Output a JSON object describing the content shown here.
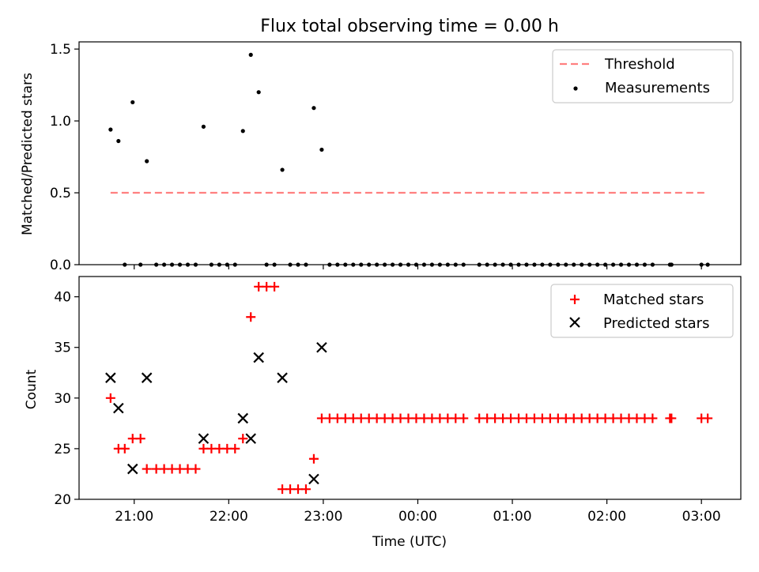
{
  "chart_data": [
    {
      "type": "scatter",
      "title": "Flux total observing time = 0.00 h",
      "xlabel": "",
      "ylabel": "Matched/Predicted stars",
      "xlim_minutes": [
        1225,
        1645
      ],
      "ylim": [
        0,
        1.55
      ],
      "yticks": [
        0.0,
        0.5,
        1.0,
        1.5
      ],
      "ytick_labels": [
        "0.0",
        "0.5",
        "1.0",
        "1.5"
      ],
      "legend_position": "upper-right",
      "legend": [
        "Threshold",
        "Measurements"
      ],
      "threshold": {
        "name": "Threshold",
        "value": 0.5,
        "x_start": 1245,
        "x_end": 1623,
        "color": "#ff8080"
      },
      "series": [
        {
          "name": "Measurements",
          "color": "#000000",
          "points": [
            [
              1245,
              0.94
            ],
            [
              1250,
              0.86
            ],
            [
              1259,
              1.13
            ],
            [
              1268,
              0.72
            ],
            [
              1304,
              0.96
            ],
            [
              1329,
              0.93
            ],
            [
              1334,
              1.46
            ],
            [
              1339,
              1.2
            ],
            [
              1354,
              0.66
            ],
            [
              1374,
              1.09
            ],
            [
              1379,
              0.8
            ],
            [
              1254,
              0.0
            ],
            [
              1264,
              0.0
            ],
            [
              1274,
              0.0
            ],
            [
              1279,
              0.0
            ],
            [
              1284,
              0.0
            ],
            [
              1289,
              0.0
            ],
            [
              1294,
              0.0
            ],
            [
              1299,
              0.0
            ],
            [
              1309,
              0.0
            ],
            [
              1314,
              0.0
            ],
            [
              1319,
              0.0
            ],
            [
              1324,
              0.0
            ],
            [
              1344,
              0.0
            ],
            [
              1349,
              0.0
            ],
            [
              1359,
              0.0
            ],
            [
              1364,
              0.0
            ],
            [
              1369,
              0.0
            ],
            [
              1384,
              0.0
            ],
            [
              1389,
              0.0
            ],
            [
              1394,
              0.0
            ],
            [
              1399,
              0.0
            ],
            [
              1404,
              0.0
            ],
            [
              1409,
              0.0
            ],
            [
              1414,
              0.0
            ],
            [
              1419,
              0.0
            ],
            [
              1424,
              0.0
            ],
            [
              1429,
              0.0
            ],
            [
              1434,
              0.0
            ],
            [
              1439,
              0.0
            ],
            [
              1444,
              0.0
            ],
            [
              1449,
              0.0
            ],
            [
              1454,
              0.0
            ],
            [
              1459,
              0.0
            ],
            [
              1464,
              0.0
            ],
            [
              1469,
              0.0
            ],
            [
              1479,
              0.0
            ],
            [
              1484,
              0.0
            ],
            [
              1489,
              0.0
            ],
            [
              1494,
              0.0
            ],
            [
              1499,
              0.0
            ],
            [
              1504,
              0.0
            ],
            [
              1509,
              0.0
            ],
            [
              1514,
              0.0
            ],
            [
              1519,
              0.0
            ],
            [
              1524,
              0.0
            ],
            [
              1529,
              0.0
            ],
            [
              1534,
              0.0
            ],
            [
              1539,
              0.0
            ],
            [
              1544,
              0.0
            ],
            [
              1549,
              0.0
            ],
            [
              1554,
              0.0
            ],
            [
              1559,
              0.0
            ],
            [
              1564,
              0.0
            ],
            [
              1569,
              0.0
            ],
            [
              1574,
              0.0
            ],
            [
              1579,
              0.0
            ],
            [
              1584,
              0.0
            ],
            [
              1589,
              0.0
            ],
            [
              1600,
              0.0
            ],
            [
              1601,
              0.0
            ],
            [
              1620,
              0.0
            ],
            [
              1624,
              0.0
            ]
          ]
        }
      ]
    },
    {
      "type": "scatter",
      "title": "",
      "xlabel": "Time (UTC)",
      "ylabel": "Count",
      "xlim_minutes": [
        1225,
        1645
      ],
      "ylim": [
        20,
        42
      ],
      "yticks": [
        20,
        25,
        30,
        35,
        40
      ],
      "ytick_labels": [
        "20",
        "25",
        "30",
        "35",
        "40"
      ],
      "xticks_minutes": [
        1260,
        1320,
        1380,
        1440,
        1500,
        1560,
        1620
      ],
      "xtick_labels": [
        "21:00",
        "22:00",
        "23:00",
        "00:00",
        "01:00",
        "02:00",
        "03:00"
      ],
      "legend_position": "upper-right",
      "legend": [
        "Matched stars",
        "Predicted stars"
      ],
      "series": [
        {
          "name": "Matched stars",
          "marker": "plus",
          "color": "#ff0000",
          "points": [
            [
              1245,
              30
            ],
            [
              1250,
              25
            ],
            [
              1254,
              25
            ],
            [
              1259,
              26
            ],
            [
              1264,
              26
            ],
            [
              1268,
              23
            ],
            [
              1274,
              23
            ],
            [
              1279,
              23
            ],
            [
              1284,
              23
            ],
            [
              1289,
              23
            ],
            [
              1294,
              23
            ],
            [
              1299,
              23
            ],
            [
              1304,
              25
            ],
            [
              1309,
              25
            ],
            [
              1314,
              25
            ],
            [
              1319,
              25
            ],
            [
              1324,
              25
            ],
            [
              1329,
              26
            ],
            [
              1334,
              38
            ],
            [
              1339,
              41
            ],
            [
              1344,
              41
            ],
            [
              1349,
              41
            ],
            [
              1354,
              21
            ],
            [
              1359,
              21
            ],
            [
              1364,
              21
            ],
            [
              1369,
              21
            ],
            [
              1374,
              24
            ],
            [
              1379,
              28
            ],
            [
              1384,
              28
            ],
            [
              1389,
              28
            ],
            [
              1394,
              28
            ],
            [
              1399,
              28
            ],
            [
              1404,
              28
            ],
            [
              1409,
              28
            ],
            [
              1414,
              28
            ],
            [
              1419,
              28
            ],
            [
              1424,
              28
            ],
            [
              1429,
              28
            ],
            [
              1434,
              28
            ],
            [
              1439,
              28
            ],
            [
              1444,
              28
            ],
            [
              1449,
              28
            ],
            [
              1454,
              28
            ],
            [
              1459,
              28
            ],
            [
              1464,
              28
            ],
            [
              1469,
              28
            ],
            [
              1479,
              28
            ],
            [
              1484,
              28
            ],
            [
              1489,
              28
            ],
            [
              1494,
              28
            ],
            [
              1499,
              28
            ],
            [
              1504,
              28
            ],
            [
              1509,
              28
            ],
            [
              1514,
              28
            ],
            [
              1519,
              28
            ],
            [
              1524,
              28
            ],
            [
              1529,
              28
            ],
            [
              1534,
              28
            ],
            [
              1539,
              28
            ],
            [
              1544,
              28
            ],
            [
              1549,
              28
            ],
            [
              1554,
              28
            ],
            [
              1559,
              28
            ],
            [
              1564,
              28
            ],
            [
              1569,
              28
            ],
            [
              1574,
              28
            ],
            [
              1579,
              28
            ],
            [
              1584,
              28
            ],
            [
              1589,
              28
            ],
            [
              1600,
              28
            ],
            [
              1601,
              28
            ],
            [
              1620,
              28
            ],
            [
              1624,
              28
            ]
          ]
        },
        {
          "name": "Predicted stars",
          "marker": "x",
          "color": "#000000",
          "points": [
            [
              1245,
              32
            ],
            [
              1250,
              29
            ],
            [
              1259,
              23
            ],
            [
              1268,
              32
            ],
            [
              1304,
              26
            ],
            [
              1329,
              28
            ],
            [
              1334,
              26
            ],
            [
              1339,
              34
            ],
            [
              1354,
              32
            ],
            [
              1374,
              22
            ],
            [
              1379,
              35
            ]
          ]
        }
      ]
    }
  ]
}
